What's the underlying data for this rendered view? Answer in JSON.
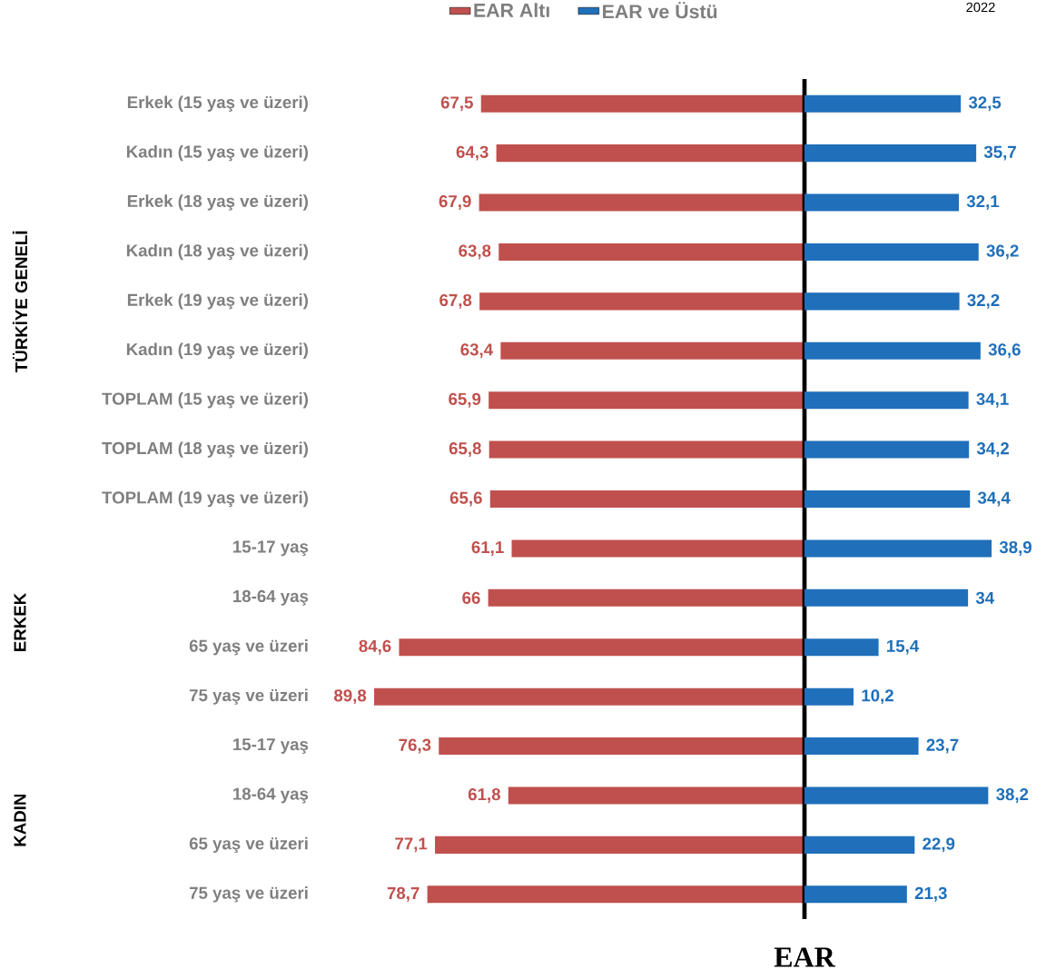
{
  "chart_data": [
    {
      "type": "bar",
      "orientation": "horizontal",
      "categories": [
        "Erkek (15 yaş ve üzeri)",
        "Kadın (15 yaş ve üzeri)",
        "Erkek (18 yaş ve üzeri)",
        "Kadın (18 yaş ve üzeri)",
        "Erkek (19 yaş ve üzeri)",
        "Kadın (19 yaş ve üzeri)",
        "TOPLAM (15 yaş ve üzeri)",
        "TOPLAM (18 yaş ve üzeri)",
        "TOPLAM (19 yaş ve üzeri)",
        "15-17 yaş",
        "18-64 yaş",
        "65 yaş ve üzeri",
        "75 yaş ve üzeri",
        "15-17 yaş",
        "18-64 yaş",
        "65 yaş ve üzeri",
        "75 yaş ve üzeri"
      ],
      "series": [
        {
          "name": "EAR Altı",
          "color": "#c0504d",
          "values": [
            67.5,
            64.3,
            67.9,
            63.8,
            67.8,
            63.4,
            65.9,
            65.8,
            65.6,
            61.1,
            66,
            84.6,
            89.8,
            76.3,
            61.8,
            77.1,
            78.7
          ],
          "value_labels": [
            "67,5",
            "64,3",
            "67,9",
            "63,8",
            "67,8",
            "63,4",
            "65,9",
            "65,8",
            "65,6",
            "61,1",
            "66",
            "84,6",
            "89,8",
            "76,3",
            "61,8",
            "77,1",
            "78,7"
          ]
        }
      ],
      "tick_labels": "y",
      "legend": "top",
      "annotations": [
        "2022",
        "TÜRKİYE GENELİ",
        "ERKEK",
        "KADIN"
      ]
    },
    {
      "type": "bar",
      "orientation": "horizontal",
      "categories": [
        null,
        null,
        null,
        null,
        null,
        null,
        null,
        null,
        null,
        null,
        null,
        null,
        null,
        null,
        null,
        null,
        null
      ],
      "series": [
        {
          "name": "EAR ve Üstü",
          "color": "#1f6fba",
          "values": [
            32.5,
            35.7,
            32.1,
            36.2,
            32.2,
            36.6,
            34.1,
            34.2,
            34.4,
            38.9,
            34,
            15.4,
            10.2,
            23.7,
            38.2,
            22.9,
            21.3
          ],
          "value_labels": [
            "32,5",
            "35,7",
            "32,1",
            "36,2",
            "32,2",
            "36,6",
            "34,1",
            "34,2",
            "34,4",
            "38,9",
            "34",
            "15,4",
            "10,2",
            "23,7",
            "38,2",
            "22,9",
            "21,3"
          ]
        }
      ],
      "xlabel": "EAR",
      "tick_labels": false,
      "legend": "top"
    }
  ]
}
